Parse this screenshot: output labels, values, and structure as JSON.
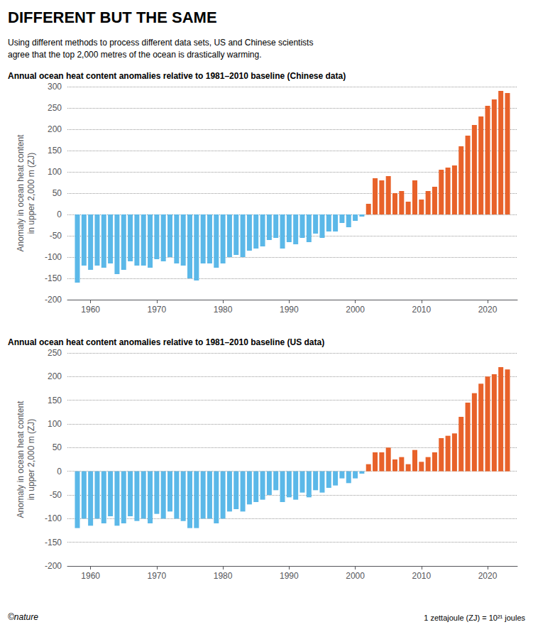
{
  "title": "DIFFERENT BUT THE SAME",
  "subtitle": "Using different methods to process different data sets, US and Chinese scientists\nagree that the top 2,000 metres of the ocean is drastically warming.",
  "annotations": [
    "©nature",
    "1 zettajoule (ZJ) = 10²¹ joules"
  ],
  "chart_data": [
    {
      "type": "bar",
      "title": "Annual ocean heat content anomalies relative to 1981–2010 baseline (Chinese data)",
      "ylabel": "Anomaly in ocean heat content\nin upper 2,000 m (ZJ)",
      "x": [
        1958,
        1959,
        1960,
        1961,
        1962,
        1963,
        1964,
        1965,
        1966,
        1967,
        1968,
        1969,
        1970,
        1971,
        1972,
        1973,
        1974,
        1975,
        1976,
        1977,
        1978,
        1979,
        1980,
        1981,
        1982,
        1983,
        1984,
        1985,
        1986,
        1987,
        1988,
        1989,
        1990,
        1991,
        1992,
        1993,
        1994,
        1995,
        1996,
        1997,
        1998,
        1999,
        2000,
        2001,
        2002,
        2003,
        2004,
        2005,
        2006,
        2007,
        2008,
        2009,
        2010,
        2011,
        2012,
        2013,
        2014,
        2015,
        2016,
        2017,
        2018,
        2019,
        2020,
        2021,
        2022,
        2023
      ],
      "values": [
        -160,
        -120,
        -130,
        -120,
        -125,
        -115,
        -140,
        -130,
        -110,
        -120,
        -120,
        -125,
        -105,
        -110,
        -100,
        -115,
        -120,
        -150,
        -155,
        -115,
        -115,
        -125,
        -115,
        -100,
        -95,
        -100,
        -85,
        -80,
        -75,
        -60,
        -55,
        -80,
        -65,
        -70,
        -55,
        -65,
        -45,
        -55,
        -40,
        -40,
        -20,
        -30,
        -15,
        -5,
        25,
        85,
        80,
        90,
        50,
        55,
        30,
        80,
        35,
        55,
        65,
        105,
        110,
        115,
        160,
        185,
        210,
        230,
        255,
        270,
        290,
        285
      ],
      "colors": [
        "#5BB8E8",
        "#5BB8E8",
        "#5BB8E8",
        "#5BB8E8",
        "#5BB8E8",
        "#5BB8E8",
        "#5BB8E8",
        "#5BB8E8",
        "#5BB8E8",
        "#5BB8E8",
        "#5BB8E8",
        "#5BB8E8",
        "#5BB8E8",
        "#5BB8E8",
        "#5BB8E8",
        "#5BB8E8",
        "#5BB8E8",
        "#5BB8E8",
        "#5BB8E8",
        "#5BB8E8",
        "#5BB8E8",
        "#5BB8E8",
        "#5BB8E8",
        "#5BB8E8",
        "#5BB8E8",
        "#5BB8E8",
        "#5BB8E8",
        "#5BB8E8",
        "#5BB8E8",
        "#5BB8E8",
        "#5BB8E8",
        "#5BB8E8",
        "#5BB8E8",
        "#5BB8E8",
        "#5BB8E8",
        "#5BB8E8",
        "#5BB8E8",
        "#5BB8E8",
        "#5BB8E8",
        "#5BB8E8",
        "#5BB8E8",
        "#5BB8E8",
        "#5BB8E8",
        "#5BB8E8",
        "#E8622A",
        "#E8622A",
        "#E8622A",
        "#E8622A",
        "#E8622A",
        "#E8622A",
        "#E8622A",
        "#E8622A",
        "#E8622A",
        "#E8622A",
        "#E8622A",
        "#E8622A",
        "#E8622A",
        "#E8622A",
        "#E8622A",
        "#E8622A",
        "#E8622A",
        "#E8622A",
        "#E8622A",
        "#E8622A",
        "#E8622A",
        "#E8622A"
      ],
      "xlim": [
        1956.5,
        2024.5
      ],
      "xticks": [
        1960,
        1970,
        1980,
        1990,
        2000,
        2010,
        2020
      ],
      "ylim": [
        -200,
        300
      ],
      "yticks": [
        -200,
        -150,
        -100,
        -50,
        0,
        50,
        100,
        150,
        200,
        250,
        300
      ],
      "grid": true
    },
    {
      "type": "bar",
      "title": "Annual ocean heat content anomalies relative to 1981–2010 baseline (US data)",
      "ylabel": "Anomaly in ocean heat content\nin upper 2,000 m (ZJ)",
      "x": [
        1958,
        1959,
        1960,
        1961,
        1962,
        1963,
        1964,
        1965,
        1966,
        1967,
        1968,
        1969,
        1970,
        1971,
        1972,
        1973,
        1974,
        1975,
        1976,
        1977,
        1978,
        1979,
        1980,
        1981,
        1982,
        1983,
        1984,
        1985,
        1986,
        1987,
        1988,
        1989,
        1990,
        1991,
        1992,
        1993,
        1994,
        1995,
        1996,
        1997,
        1998,
        1999,
        2000,
        2001,
        2002,
        2003,
        2004,
        2005,
        2006,
        2007,
        2008,
        2009,
        2010,
        2011,
        2012,
        2013,
        2014,
        2015,
        2016,
        2017,
        2018,
        2019,
        2020,
        2021,
        2022,
        2023
      ],
      "values": [
        -120,
        -100,
        -115,
        -100,
        -110,
        -95,
        -115,
        -110,
        -95,
        -105,
        -100,
        -110,
        -90,
        -100,
        -85,
        -100,
        -105,
        -120,
        -120,
        -100,
        -100,
        -110,
        -100,
        -85,
        -80,
        -85,
        -70,
        -65,
        -60,
        -50,
        -40,
        -65,
        -55,
        -60,
        -45,
        -55,
        -40,
        -45,
        -35,
        -30,
        -15,
        -25,
        -15,
        -5,
        15,
        40,
        40,
        50,
        25,
        30,
        15,
        45,
        20,
        30,
        40,
        70,
        75,
        80,
        115,
        145,
        165,
        185,
        200,
        205,
        220,
        215
      ],
      "colors": [
        "#5BB8E8",
        "#5BB8E8",
        "#5BB8E8",
        "#5BB8E8",
        "#5BB8E8",
        "#5BB8E8",
        "#5BB8E8",
        "#5BB8E8",
        "#5BB8E8",
        "#5BB8E8",
        "#5BB8E8",
        "#5BB8E8",
        "#5BB8E8",
        "#5BB8E8",
        "#5BB8E8",
        "#5BB8E8",
        "#5BB8E8",
        "#5BB8E8",
        "#5BB8E8",
        "#5BB8E8",
        "#5BB8E8",
        "#5BB8E8",
        "#5BB8E8",
        "#5BB8E8",
        "#5BB8E8",
        "#5BB8E8",
        "#5BB8E8",
        "#5BB8E8",
        "#5BB8E8",
        "#5BB8E8",
        "#5BB8E8",
        "#5BB8E8",
        "#5BB8E8",
        "#5BB8E8",
        "#5BB8E8",
        "#5BB8E8",
        "#5BB8E8",
        "#5BB8E8",
        "#5BB8E8",
        "#5BB8E8",
        "#5BB8E8",
        "#5BB8E8",
        "#5BB8E8",
        "#5BB8E8",
        "#E8622A",
        "#E8622A",
        "#E8622A",
        "#E8622A",
        "#E8622A",
        "#E8622A",
        "#E8622A",
        "#E8622A",
        "#E8622A",
        "#E8622A",
        "#E8622A",
        "#E8622A",
        "#E8622A",
        "#E8622A",
        "#E8622A",
        "#E8622A",
        "#E8622A",
        "#E8622A",
        "#E8622A",
        "#E8622A",
        "#E8622A",
        "#E8622A"
      ],
      "xlim": [
        1956.5,
        2024.5
      ],
      "xticks": [
        1960,
        1970,
        1980,
        1990,
        2000,
        2010,
        2020
      ],
      "ylim": [
        -200,
        250
      ],
      "yticks": [
        -200,
        -150,
        -100,
        -50,
        0,
        50,
        100,
        150,
        200,
        250
      ],
      "grid": true
    }
  ]
}
